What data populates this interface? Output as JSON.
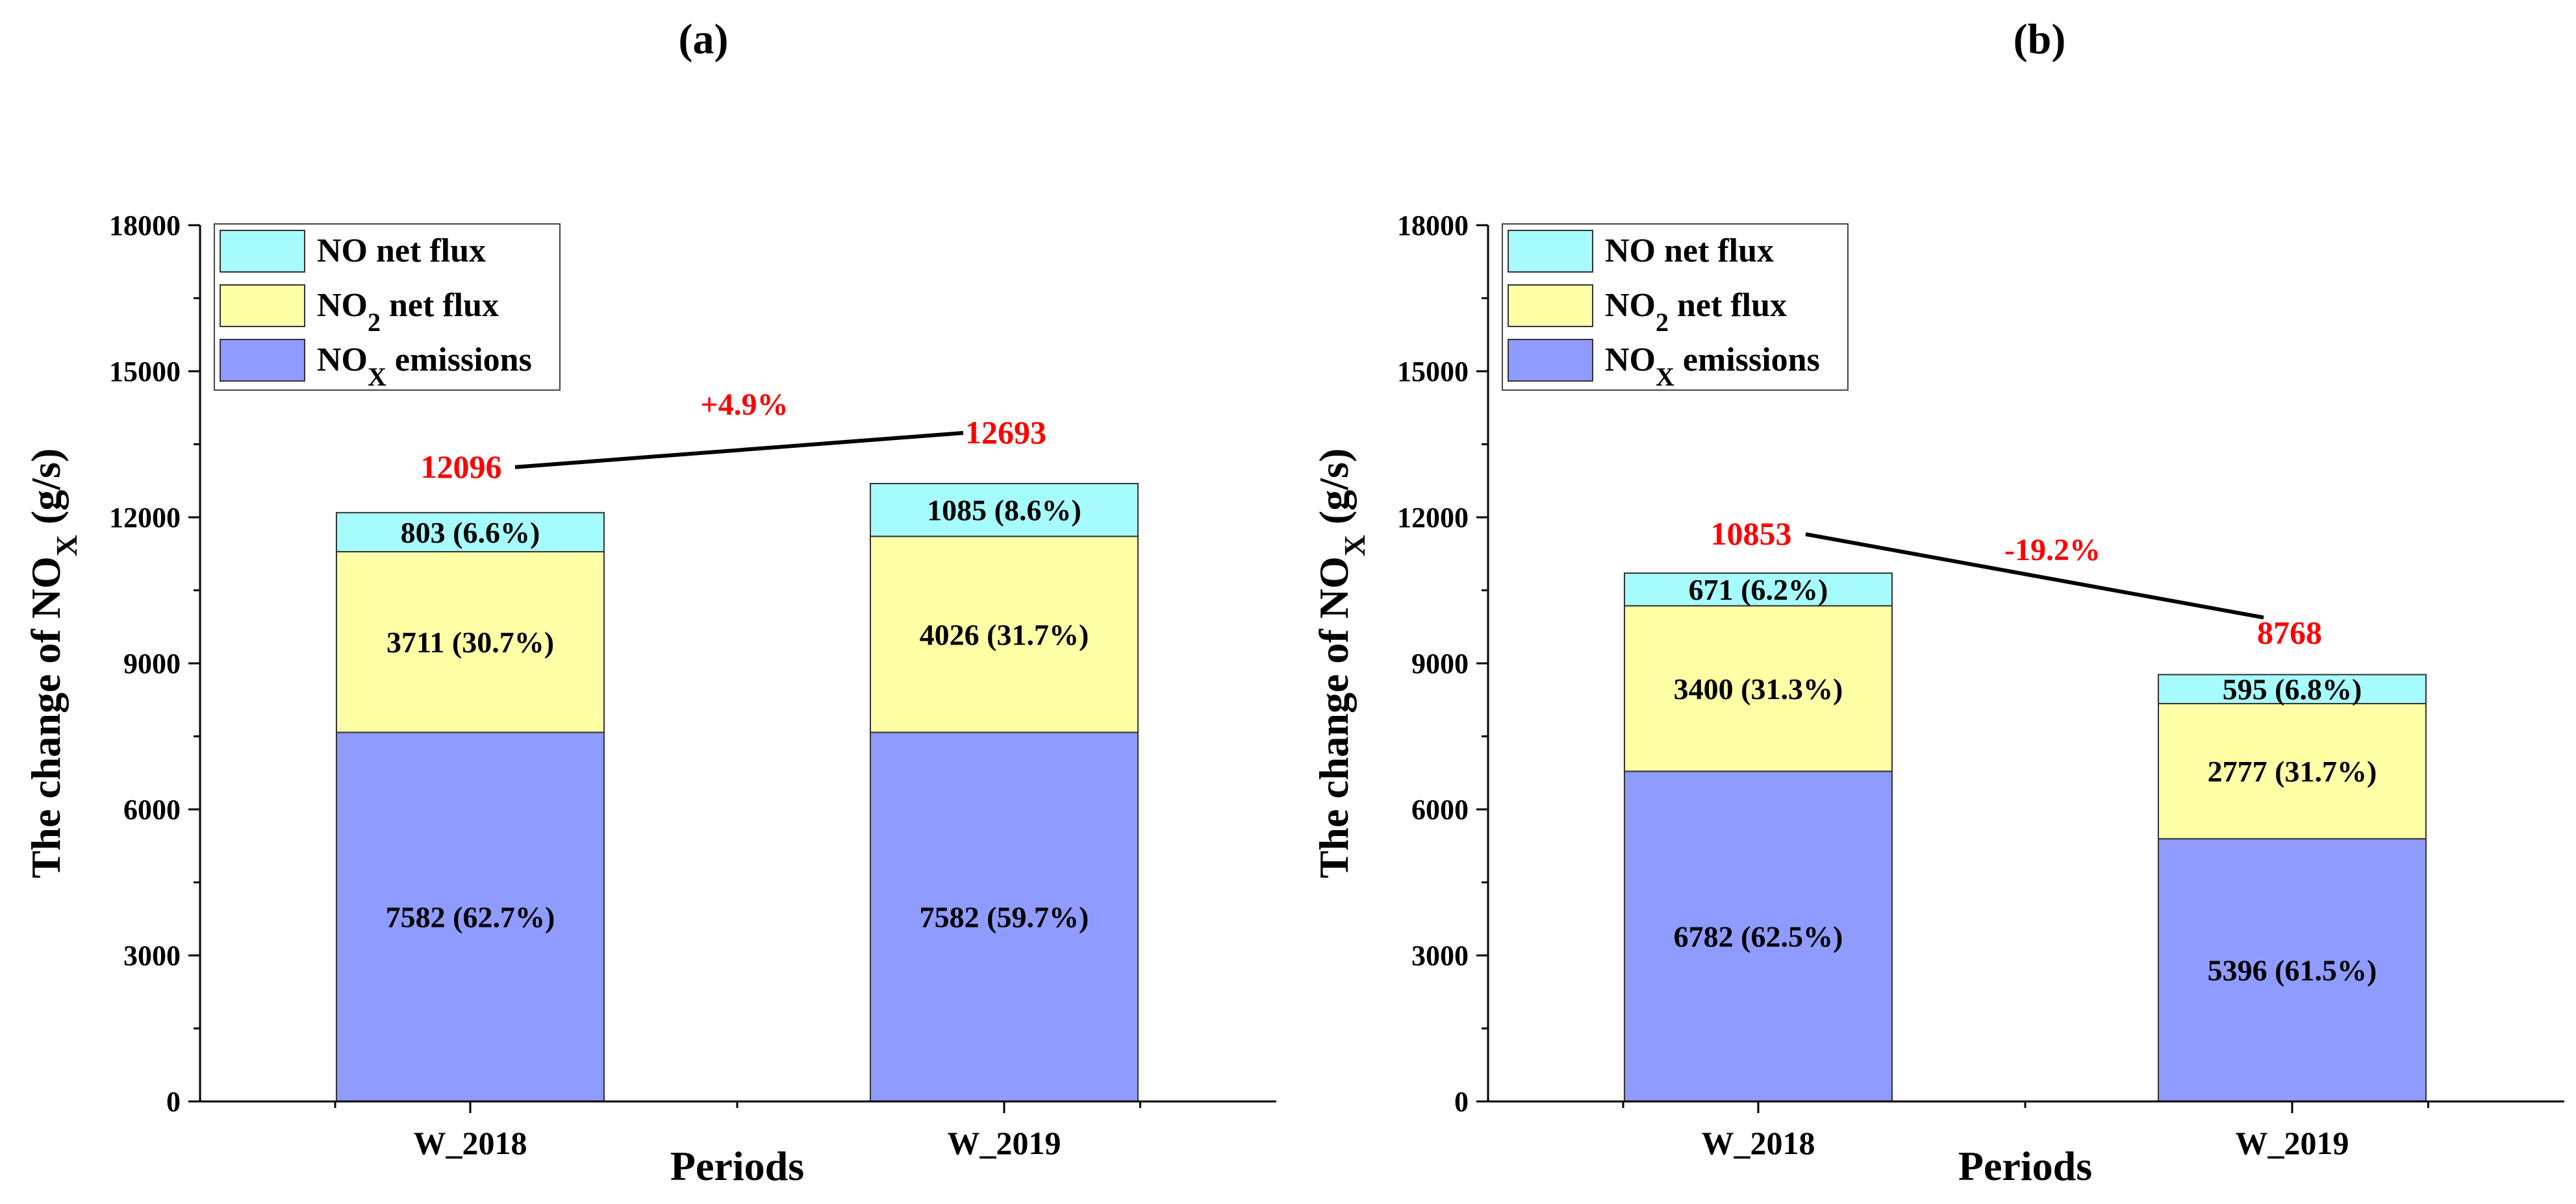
{
  "chart_data": [
    {
      "type": "bar",
      "stacked": true,
      "panel_label": "(a)",
      "xlabel": "Periods",
      "ylabel_prefix": "The change of NO",
      "ylabel_sub": "X",
      "ylabel_suffix": " (g/s)",
      "ylim": [
        0,
        18000
      ],
      "yticks": [
        0,
        3000,
        6000,
        9000,
        12000,
        15000,
        18000
      ],
      "categories": [
        "W_2018",
        "W_2019"
      ],
      "series": [
        {
          "name": "NOX emissions",
          "legend_main": "NO",
          "legend_sub": "X",
          "legend_rest": " emissions",
          "color": "#8f9bff",
          "values": [
            7582,
            7582
          ],
          "labels": [
            "7582 (62.7%)",
            "7582 (59.7%)"
          ]
        },
        {
          "name": "NO2 net flux",
          "legend_main": "NO",
          "legend_sub": "2",
          "legend_rest": " net flux",
          "color": "#ffffa6",
          "values": [
            3711,
            4026
          ],
          "labels": [
            "3711 (30.7%)",
            "4026 (31.7%)"
          ]
        },
        {
          "name": "NO net flux",
          "legend_main": "NO net flux",
          "legend_sub": "",
          "legend_rest": "",
          "color": "#a6fcfc",
          "values": [
            803,
            1085
          ],
          "labels": [
            "803 (6.6%)",
            "1085 (8.6%)"
          ]
        }
      ],
      "totals": [
        12096,
        12693
      ],
      "total_labels": [
        "12096",
        "12693"
      ],
      "change_label": "+4.9%",
      "legend_position": "top-left"
    },
    {
      "type": "bar",
      "stacked": true,
      "panel_label": "(b)",
      "xlabel": "Periods",
      "ylabel_prefix": "The change of NO",
      "ylabel_sub": "X",
      "ylabel_suffix": " (g/s)",
      "ylim": [
        0,
        18000
      ],
      "yticks": [
        0,
        3000,
        6000,
        9000,
        12000,
        15000,
        18000
      ],
      "categories": [
        "W_2018",
        "W_2019"
      ],
      "series": [
        {
          "name": "NOX emissions",
          "legend_main": "NO",
          "legend_sub": "X",
          "legend_rest": " emissions",
          "color": "#8f9bff",
          "values": [
            6782,
            5396
          ],
          "labels": [
            "6782 (62.5%)",
            "5396 (61.5%)"
          ]
        },
        {
          "name": "NO2 net flux",
          "legend_main": "NO",
          "legend_sub": "2",
          "legend_rest": " net flux",
          "color": "#ffffa6",
          "values": [
            3400,
            2777
          ],
          "labels": [
            "3400 (31.3%)",
            "2777 (31.7%)"
          ]
        },
        {
          "name": "NO net flux",
          "legend_main": "NO net flux",
          "legend_sub": "",
          "legend_rest": "",
          "color": "#a6fcfc",
          "values": [
            671,
            595
          ],
          "labels": [
            "671 (6.2%)",
            "595 (6.8%)"
          ]
        }
      ],
      "totals": [
        10853,
        8768
      ],
      "total_labels": [
        "10853",
        "8768"
      ],
      "change_label": "-19.2%",
      "legend_position": "top-left"
    }
  ],
  "annotation_color": "#ff0000"
}
